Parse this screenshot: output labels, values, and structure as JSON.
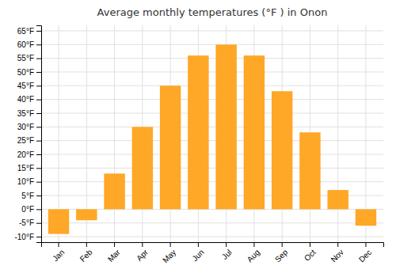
{
  "chart_data": {
    "type": "bar",
    "title": "Average monthly temperatures (°F ) in Onon",
    "categories": [
      "Jan",
      "Feb",
      "Mar",
      "Apr",
      "May",
      "Jun",
      "Jul",
      "Aug",
      "Sep",
      "Oct",
      "Nov",
      "Dec"
    ],
    "values": [
      -9,
      -4,
      13,
      30,
      45,
      56,
      60,
      56,
      43,
      28,
      7,
      -6
    ],
    "color": "#FFA726",
    "ylim": [
      -12,
      67
    ],
    "yticks": [
      {
        "value": -10,
        "label": "-10°F"
      },
      {
        "value": -5,
        "label": "-5°F"
      },
      {
        "value": 0,
        "label": "0°F"
      },
      {
        "value": 5,
        "label": "5°F"
      },
      {
        "value": 10,
        "label": "10°F"
      },
      {
        "value": 15,
        "label": "15°F"
      },
      {
        "value": 20,
        "label": "20°F"
      },
      {
        "value": 25,
        "label": "25°F"
      },
      {
        "value": 30,
        "label": "30°F"
      },
      {
        "value": 35,
        "label": "35°F"
      },
      {
        "value": 40,
        "label": "40°F"
      },
      {
        "value": 45,
        "label": "45°F"
      },
      {
        "value": 50,
        "label": "50°F"
      },
      {
        "value": 55,
        "label": "55°F"
      },
      {
        "value": 60,
        "label": "60°F"
      },
      {
        "value": 65,
        "label": "65°F"
      }
    ],
    "grid": true
  }
}
